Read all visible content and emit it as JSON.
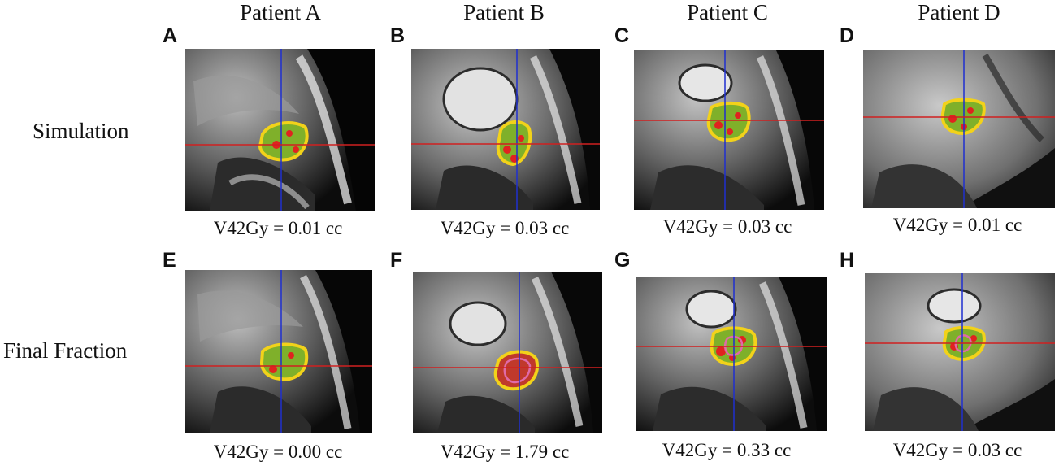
{
  "figure": {
    "column_headers": [
      "Patient A",
      "Patient B",
      "Patient C",
      "Patient D"
    ],
    "row_labels": [
      "Simulation",
      "Final Fraction"
    ],
    "panels": [
      {
        "letter": "A",
        "caption": "V42Gy = 0.01 cc",
        "image": "sagittal-mri-slice"
      },
      {
        "letter": "B",
        "caption": "V42Gy = 0.03 cc",
        "image": "sagittal-mri-slice"
      },
      {
        "letter": "C",
        "caption": "V42Gy = 0.03 cc",
        "image": "sagittal-mri-slice"
      },
      {
        "letter": "D",
        "caption": "V42Gy = 0.01 cc",
        "image": "sagittal-mri-slice"
      },
      {
        "letter": "E",
        "caption": "V42Gy = 0.00 cc",
        "image": "sagittal-mri-slice"
      },
      {
        "letter": "F",
        "caption": "V42Gy = 1.79 cc",
        "image": "sagittal-mri-slice"
      },
      {
        "letter": "G",
        "caption": "V42Gy = 0.33 cc",
        "image": "sagittal-mri-slice"
      },
      {
        "letter": "H",
        "caption": "V42Gy = 0.03 cc",
        "image": "sagittal-mri-slice"
      }
    ],
    "colors": {
      "crosshair_vertical": "#1f2fd0",
      "crosshair_horizontal": "#d02020",
      "contour_outline": "#f2d21a",
      "dose_fill": "#7fb02a",
      "hotspot": "#e0231f",
      "inner_contour": "#e06aa8"
    }
  }
}
